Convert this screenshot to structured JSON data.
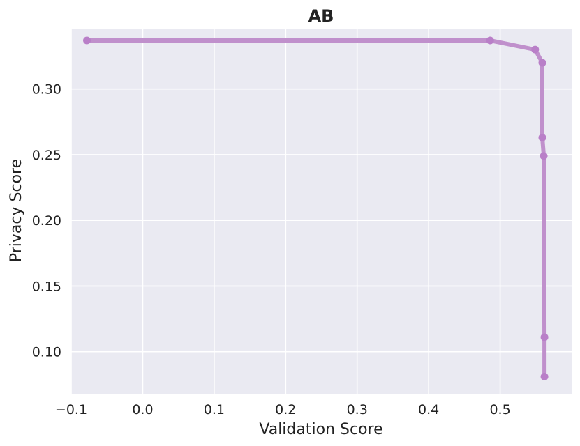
{
  "chart_data": {
    "type": "line",
    "title": "AB",
    "xlabel": "Validation Score",
    "ylabel": "Privacy Score",
    "xlim": [
      -0.1,
      0.6
    ],
    "ylim": [
      0.068,
      0.346
    ],
    "x_ticks": [
      -0.1,
      0.0,
      0.1,
      0.2,
      0.3,
      0.4,
      0.5
    ],
    "x_tick_labels": [
      "−0.1",
      "0.0",
      "0.1",
      "0.2",
      "0.3",
      "0.4",
      "0.5"
    ],
    "y_ticks": [
      0.1,
      0.15,
      0.2,
      0.25,
      0.3
    ],
    "y_tick_labels": [
      "0.10",
      "0.15",
      "0.20",
      "0.25",
      "0.30"
    ],
    "grid": true,
    "series": [
      {
        "color": "#c090cc",
        "marker_color": "#b97fc8",
        "x": [
          -0.078,
          0.486,
          0.549,
          0.559,
          0.559,
          0.561,
          0.562,
          0.562
        ],
        "y": [
          0.337,
          0.337,
          0.33,
          0.32,
          0.263,
          0.249,
          0.111,
          0.081
        ]
      }
    ]
  },
  "colors": {
    "plot_background": "#eaeaf2",
    "grid": "#ffffff"
  }
}
